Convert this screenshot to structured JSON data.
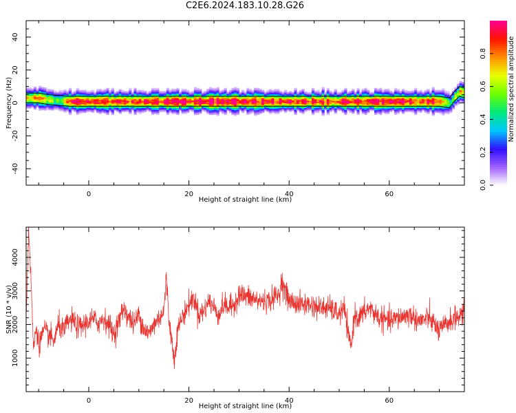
{
  "title": "C2E6.2024.183.10.28.G26",
  "colors": {
    "snr_line": "#e8332f",
    "background": "#ffffff",
    "axes": "#000000",
    "colormap": [
      "#ffffff",
      "#a060ff",
      "#3010ff",
      "#00c8ff",
      "#00e87a",
      "#6cff00",
      "#e8ff00",
      "#ff9000",
      "#ff1400",
      "#ff0090"
    ]
  },
  "chart_data": [
    {
      "type": "heatmap",
      "name": "spectrogram",
      "xlabel": "Height of straight line (km)",
      "ylabel": "Frequency (Hz)",
      "xlim": [
        -12.5,
        75
      ],
      "ylim": [
        -50,
        50
      ],
      "xticks": [
        0,
        20,
        40,
        60
      ],
      "yticks": [
        -40,
        -20,
        0,
        20,
        40
      ],
      "colorbar": {
        "label": "Normalized spectral amplitude",
        "range": [
          0.0,
          1.0
        ],
        "ticks": [
          0.0,
          0.2,
          0.4,
          0.6,
          0.8
        ]
      },
      "band": {
        "description_values": "ridge frequency (Hz) vs height (km)",
        "x": [
          -12,
          -10,
          -8,
          -6,
          -4,
          -2,
          0,
          5,
          10,
          20,
          30,
          40,
          50,
          60,
          70,
          72,
          73,
          74,
          75
        ],
        "center_hz": [
          3,
          3,
          2,
          1.5,
          1,
          1,
          1,
          1,
          1,
          1,
          1,
          1,
          1,
          1,
          1,
          0,
          4,
          7,
          6
        ],
        "peak_amplitude": [
          0.7,
          0.75,
          0.6,
          0.5,
          0.85,
          0.9,
          0.9,
          0.85,
          0.9,
          0.95,
          0.95,
          0.95,
          0.9,
          0.95,
          0.9,
          0.5,
          0.6,
          0.8,
          0.7
        ],
        "box_half_width_hz": 3
      }
    },
    {
      "type": "line",
      "name": "snr",
      "xlabel": "Height of straight line (km)",
      "ylabel": "SNR (10 * v/v)",
      "xlim": [
        -12.5,
        75
      ],
      "ylim": [
        0,
        4900
      ],
      "xticks": [
        0,
        20,
        40,
        60
      ],
      "yticks": [
        1000,
        2000,
        3000,
        4000
      ],
      "noise_std": 170,
      "trend_x": [
        -12.5,
        -12,
        -11.5,
        -11,
        -10.5,
        -10,
        -9,
        -8,
        -7,
        -6,
        -5,
        -4,
        -3,
        -2,
        -1,
        0,
        1,
        2,
        3,
        4,
        5,
        6,
        7,
        8,
        9,
        10,
        11,
        12,
        13,
        14,
        15,
        15.5,
        16,
        17,
        18,
        19,
        20,
        21,
        22,
        23,
        24,
        25,
        26,
        27,
        28,
        29,
        30,
        32,
        34,
        36,
        38,
        38.5,
        40,
        42,
        44,
        46,
        48,
        50,
        51,
        52,
        52.5,
        53,
        54,
        56,
        58,
        60,
        62,
        64,
        66,
        68,
        70,
        72,
        74,
        75
      ],
      "trend_y": [
        2200,
        4900,
        3200,
        1200,
        2000,
        1400,
        1800,
        1700,
        1500,
        2000,
        1800,
        2100,
        2100,
        1900,
        2000,
        2100,
        2150,
        2050,
        2200,
        2000,
        1700,
        2100,
        2500,
        2200,
        2000,
        2300,
        1900,
        1700,
        2000,
        2200,
        2400,
        3400,
        2200,
        1000,
        2000,
        2300,
        2600,
        2800,
        2300,
        2400,
        2700,
        2500,
        2300,
        2600,
        2500,
        2600,
        2900,
        2800,
        2700,
        2700,
        2900,
        3300,
        2700,
        2600,
        2600,
        2500,
        2500,
        2300,
        2500,
        1500,
        1400,
        2300,
        2200,
        2500,
        2200,
        2100,
        2200,
        2300,
        2100,
        2200,
        1800,
        2100,
        2250,
        2400
      ]
    }
  ]
}
